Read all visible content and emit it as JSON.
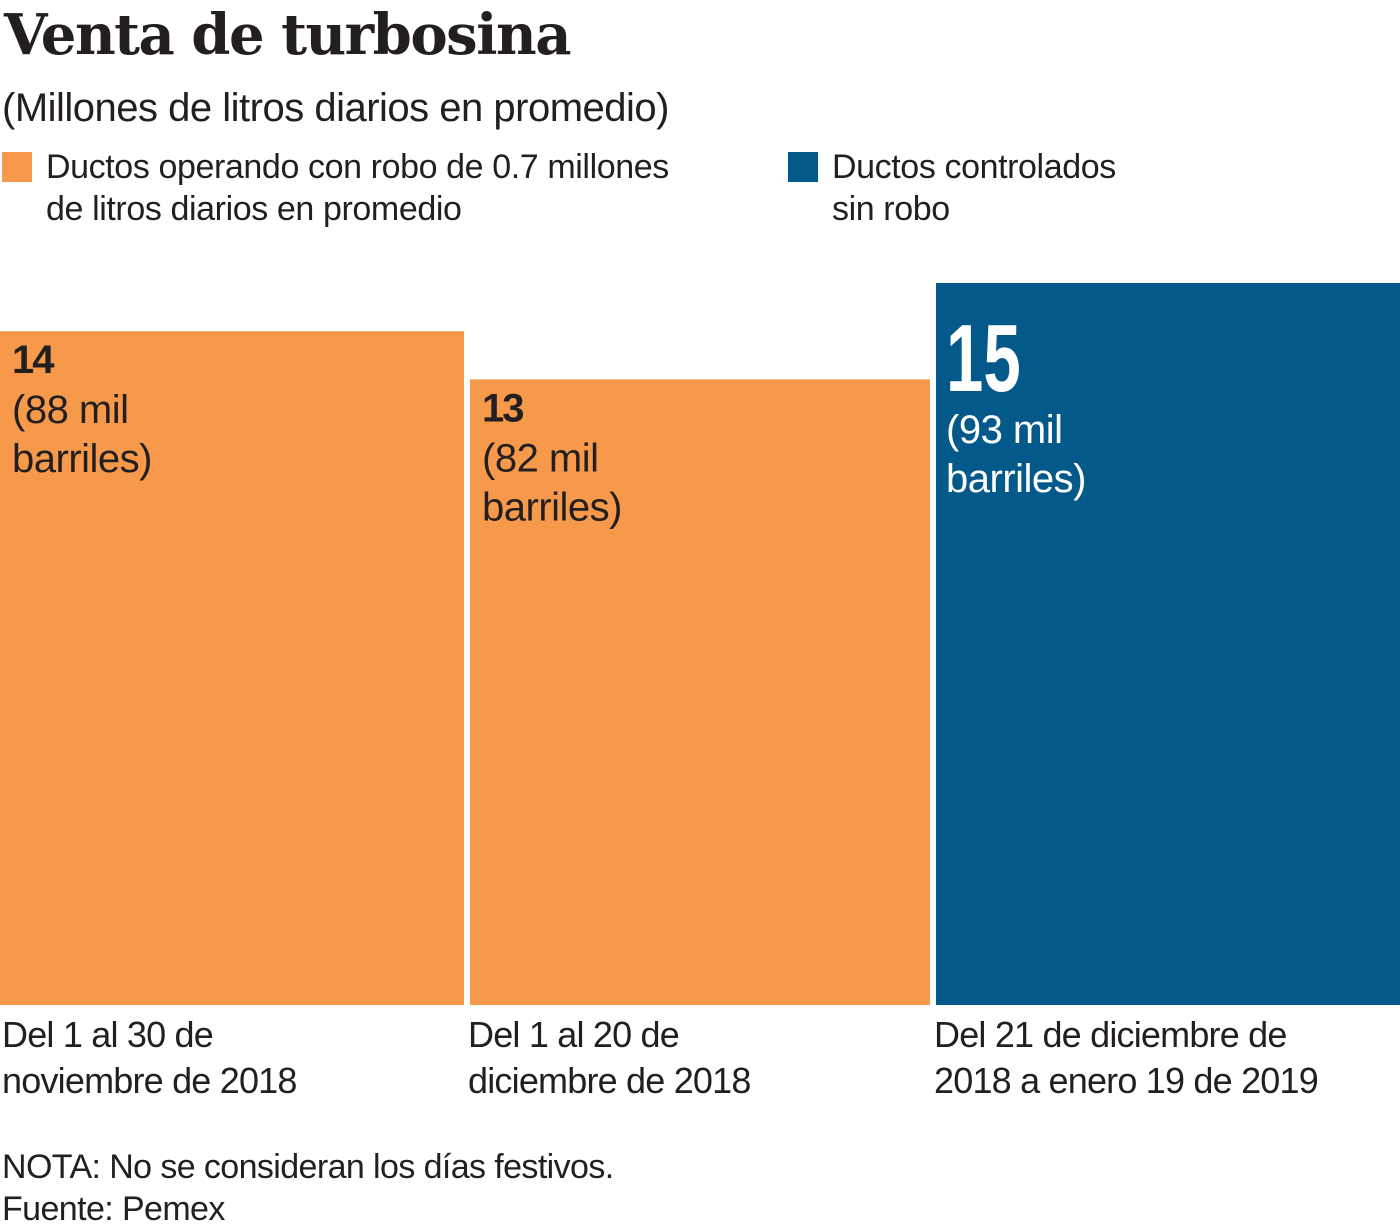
{
  "chart_data": {
    "type": "bar",
    "title": "Venta de turbosina",
    "subtitle": "(Millones de litros diarios en promedio)",
    "xlabel": "",
    "ylabel": "Millones de litros diarios en promedio",
    "ylim": [
      0,
      15
    ],
    "grid": false,
    "legend_position": "top",
    "categories": [
      "Del 1 al 30 de noviembre de 2018",
      "Del 1 al 20 de diciembre de 2018",
      "Del 21 de diciembre de 2018 a enero 19 de 2019"
    ],
    "category_lines": [
      [
        "Del 1 al 30 de",
        "noviembre de 2018"
      ],
      [
        "Del 1 al 20 de",
        "diciembre de 2018"
      ],
      [
        "Del 21 de diciembre de",
        "2018 a enero 19 de 2019"
      ]
    ],
    "values": [
      14,
      13,
      15
    ],
    "series_of_bar": [
      0,
      0,
      1
    ],
    "data_labels": [
      {
        "value": "14",
        "sub_lines": [
          "(88 mil",
          "barriles)"
        ]
      },
      {
        "value": "13",
        "sub_lines": [
          "(82 mil",
          "barriles)"
        ]
      },
      {
        "value": "15",
        "sub_lines": [
          "(93 mil",
          "barriles)"
        ]
      }
    ],
    "series": [
      {
        "name": "Ductos operando con robo de 0.7 millones de litros diarios en promedio",
        "label_lines": [
          "Ductos operando con robo de 0.7 millones",
          "de litros diarios en promedio"
        ],
        "color": "#F7994B"
      },
      {
        "name": "Ductos controlados sin robo",
        "label_lines": [
          "Ductos controlados",
          "sin robo"
        ],
        "color": "#02598A"
      }
    ],
    "notes": [
      "NOTA: No se consideran los días festivos.",
      "Fuente: Pemex"
    ]
  }
}
